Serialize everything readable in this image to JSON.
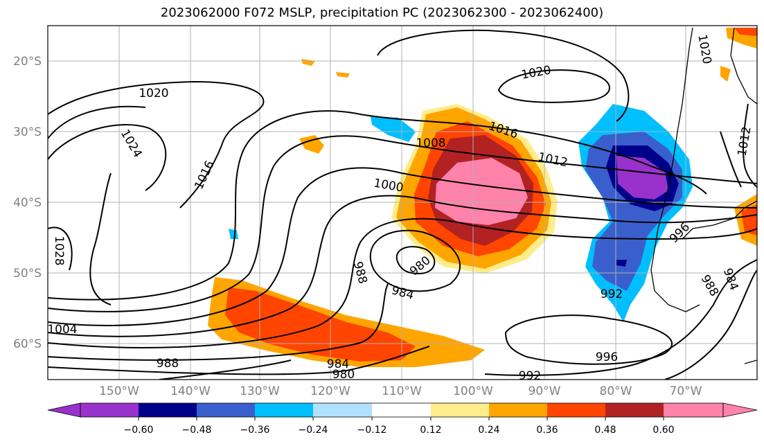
{
  "title": "2023062000 F072 MSLP, precipitation PC (2023062300 - 2023062400)",
  "map": {
    "lon_ticks": [
      "150°W",
      "140°W",
      "130°W",
      "120°W",
      "110°W",
      "100°W",
      "90°W",
      "80°W",
      "70°W"
    ],
    "lat_ticks": [
      "20°S",
      "30°S",
      "40°S",
      "50°S",
      "60°S"
    ],
    "gridlines": true,
    "isobar_labels": [
      "1020",
      "1024",
      "1016",
      "1028",
      "1004",
      "988",
      "1020",
      "1016",
      "1008",
      "1012",
      "1000",
      "988",
      "980",
      "984",
      "984",
      "980",
      "992",
      "996",
      "992",
      "988",
      "984",
      "996",
      "1012",
      "1020"
    ]
  },
  "colorbar": {
    "labels": [
      "−0.60",
      "−0.48",
      "−0.36",
      "−0.24",
      "−0.12",
      "0.12",
      "0.24",
      "0.36",
      "0.48",
      "0.60"
    ],
    "colors": [
      "#9932CC",
      "#00008B",
      "#3A5FCD",
      "#00BFFF",
      "#B0E2FF",
      "#FFFFFF",
      "#FFEC8B",
      "#FFA500",
      "#FF4500",
      "#B22222",
      "#FF82AB"
    ],
    "extend": "both"
  }
}
